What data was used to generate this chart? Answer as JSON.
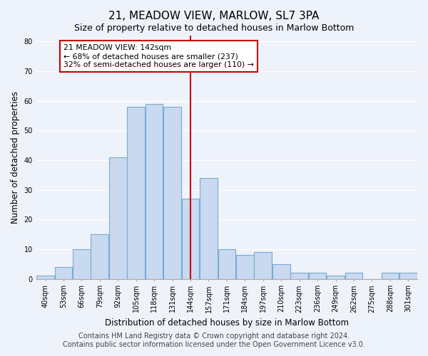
{
  "title": "21, MEADOW VIEW, MARLOW, SL7 3PA",
  "subtitle": "Size of property relative to detached houses in Marlow Bottom",
  "xlabel": "Distribution of detached houses by size in Marlow Bottom",
  "ylabel": "Number of detached properties",
  "bar_labels": [
    "40sqm",
    "53sqm",
    "66sqm",
    "79sqm",
    "92sqm",
    "105sqm",
    "118sqm",
    "131sqm",
    "144sqm",
    "157sqm",
    "171sqm",
    "184sqm",
    "197sqm",
    "210sqm",
    "223sqm",
    "236sqm",
    "249sqm",
    "262sqm",
    "275sqm",
    "288sqm",
    "301sqm"
  ],
  "bar_values": [
    1,
    4,
    10,
    15,
    41,
    58,
    59,
    58,
    27,
    34,
    10,
    8,
    9,
    5,
    2,
    2,
    1,
    2,
    0,
    2,
    2
  ],
  "bar_color": "#c8d9f0",
  "bar_edge_color": "#7aaad4",
  "vline_x_label": "144sqm",
  "vline_color": "#cc0000",
  "annotation_title": "21 MEADOW VIEW: 142sqm",
  "annotation_line1": "← 68% of detached houses are smaller (237)",
  "annotation_line2": "32% of semi-detached houses are larger (110) →",
  "annotation_box_color": "#ffffff",
  "annotation_box_edge_color": "#cc0000",
  "ylim": [
    0,
    82
  ],
  "yticks": [
    0,
    10,
    20,
    30,
    40,
    50,
    60,
    70,
    80
  ],
  "footer1": "Contains HM Land Registry data © Crown copyright and database right 2024.",
  "footer2": "Contains public sector information licensed under the Open Government Licence v3.0.",
  "background_color": "#eef2fa",
  "title_fontsize": 11,
  "subtitle_fontsize": 9,
  "axis_label_fontsize": 8.5,
  "tick_fontsize": 7,
  "footer_fontsize": 7
}
